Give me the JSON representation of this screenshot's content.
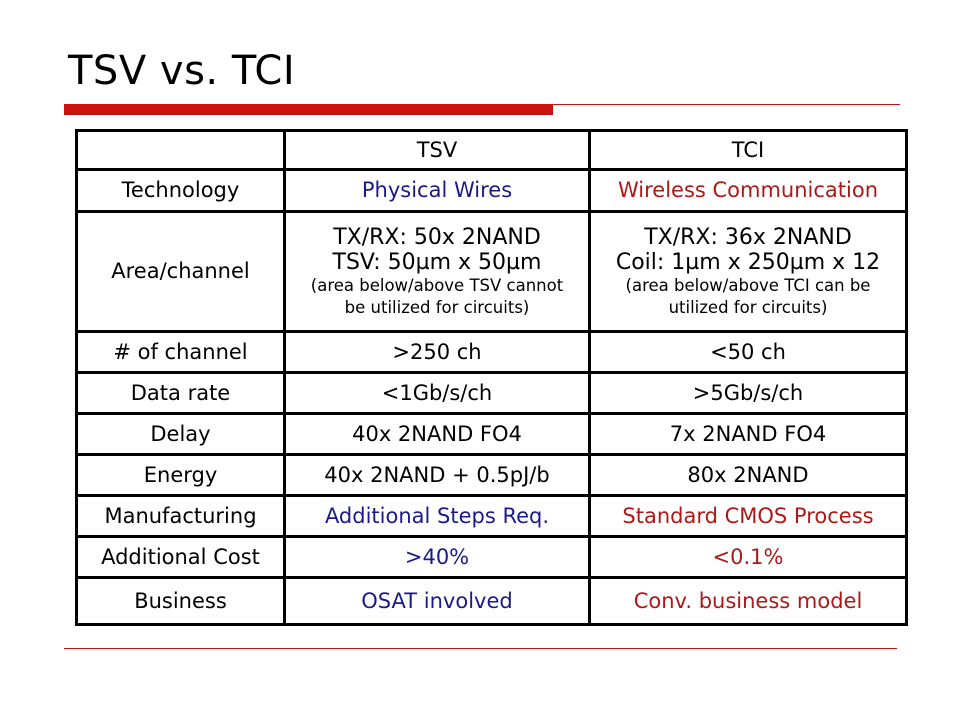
{
  "slide": {
    "title": "TSV vs. TCI"
  },
  "colors": {
    "accent_red": "#cc1111",
    "tsv_blue": "#1a1a8c",
    "tci_red": "#b01818"
  },
  "table": {
    "headers": [
      "",
      "TSV",
      "TCI"
    ],
    "rows": [
      {
        "label": "Technology",
        "tsv": "Physical Wires",
        "tci": "Wireless Communication"
      },
      {
        "label": "Area/channel",
        "tsv_line1": "TX/RX: 50x 2NAND",
        "tsv_line2": "TSV: 50µm x 50µm",
        "tsv_note_line1": "(area below/above TSV cannot",
        "tsv_note_line2": "be utilized for circuits)",
        "tci_line1": "TX/RX: 36x 2NAND",
        "tci_line2": "Coil: 1µm x 250µm x 12",
        "tci_note_line1": "(area below/above TCI can be",
        "tci_note_line2": "utilized for circuits)"
      },
      {
        "label": "# of channel",
        "tsv": ">250 ch",
        "tci": "<50 ch"
      },
      {
        "label": "Data rate",
        "tsv": "<1Gb/s/ch",
        "tci": ">5Gb/s/ch"
      },
      {
        "label": "Delay",
        "tsv": "40x 2NAND FO4",
        "tci": "7x 2NAND FO4"
      },
      {
        "label": "Energy",
        "tsv": "40x 2NAND + 0.5pJ/b",
        "tci": "80x 2NAND"
      },
      {
        "label": "Manufacturing",
        "tsv": "Additional Steps Req.",
        "tci": "Standard CMOS Process"
      },
      {
        "label": "Additional Cost",
        "tsv": ">40%",
        "tci": "<0.1%"
      },
      {
        "label": "Business",
        "tsv": "OSAT involved",
        "tci": "Conv. business model"
      }
    ]
  }
}
